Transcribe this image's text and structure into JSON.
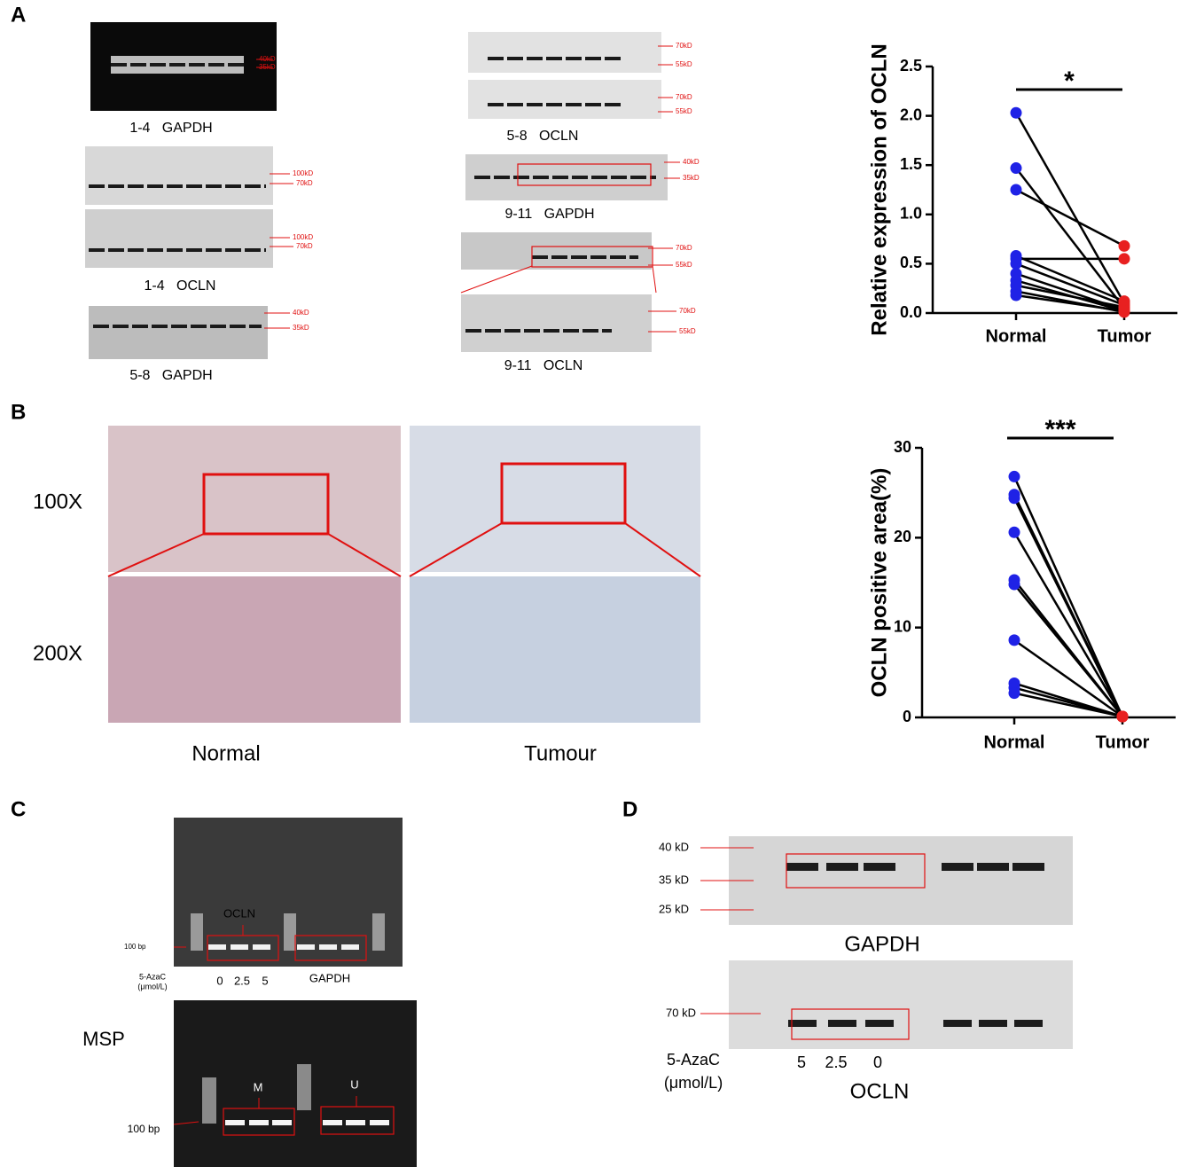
{
  "panel_letters": [
    "A",
    "B",
    "C",
    "D"
  ],
  "western_blots": [
    {
      "caption": "1-4   GAPDH",
      "markers": [
        "40kD",
        "35kD"
      ]
    },
    {
      "markers": [
        "100kD",
        "70kD"
      ]
    },
    {
      "caption": "1-4   OCLN",
      "markers": [
        "100kD",
        "70kD"
      ]
    },
    {
      "caption": "5-8   GAPDH",
      "markers": [
        "40kD",
        "35kD"
      ]
    },
    {
      "markers": [
        "70kD",
        "55kD"
      ]
    },
    {
      "caption": "5-8   OCLN",
      "markers": [
        "70kD",
        "55kD"
      ]
    },
    {
      "caption": "9-11   GAPDH",
      "markers": [
        "40kD",
        "35kD"
      ]
    },
    {
      "markers": [
        "70kD",
        "55kD"
      ]
    },
    {
      "caption": "9-11   OCLN",
      "markers": [
        "70kD",
        "55kD"
      ]
    }
  ],
  "ihc": {
    "magnifications": [
      "100X",
      "200X"
    ],
    "groups": [
      "Normal",
      "Tumour"
    ]
  },
  "panel_c": {
    "gene": "OCLN",
    "size_marker": "100 bp",
    "treatment": "5-AzaC",
    "unit": "(μmol/L)",
    "doses": [
      0,
      2.5,
      5
    ],
    "control": "GAPDH",
    "method": "MSP",
    "lanes": [
      "M",
      "U"
    ],
    "size_marker_2": "100 bp"
  },
  "panel_d": {
    "markers": [
      "40 kD",
      "35 kD",
      "25 kD"
    ],
    "caption": "GAPDH",
    "marker_2": "70 kD",
    "treatment": "5-AzaC",
    "unit": "(μmol/L)",
    "doses": [
      5,
      2.5,
      0
    ],
    "caption_2": "OCLN"
  },
  "chart_data": [
    {
      "type": "paired-dot",
      "ylabel": "Relative expression of OCLN",
      "annotation": "*",
      "categories": [
        "Normal",
        "Tumor"
      ],
      "colors": [
        "#1f22e6",
        "#e82020"
      ],
      "values": [
        [
          2.03,
          1.47,
          1.25,
          0.58,
          0.55,
          0.5,
          0.4,
          0.33,
          0.28,
          0.22,
          0.18
        ],
        [
          0.1,
          0.05,
          0.68,
          0.12,
          0.55,
          0.08,
          0.03,
          0.02,
          0.06,
          0.01,
          0.02
        ]
      ],
      "ylim": [
        0,
        2.5
      ],
      "yticks": [
        {
          "value": 0,
          "label": "0.0"
        },
        0.5,
        {
          "value": 1,
          "label": "1.0"
        },
        1.5,
        {
          "value": 2,
          "label": "2.0"
        },
        2.5
      ]
    },
    {
      "type": "paired-dot",
      "ylabel": "OCLN positive area(%)",
      "annotation": "***",
      "categories": [
        "Normal",
        "Tumor"
      ],
      "colors": [
        "#1f22e6",
        "#e82020"
      ],
      "values": [
        [
          26.8,
          24.8,
          24.4,
          20.6,
          15.3,
          14.8,
          8.6,
          3.8,
          3.3,
          2.7
        ],
        [
          0.1,
          0.1,
          0.1,
          0.1,
          0.1,
          0.1,
          0.1,
          0.1,
          0.1,
          0.1
        ]
      ],
      "ylim": [
        0,
        30
      ],
      "yticks": [
        0,
        10,
        20,
        30
      ]
    }
  ]
}
